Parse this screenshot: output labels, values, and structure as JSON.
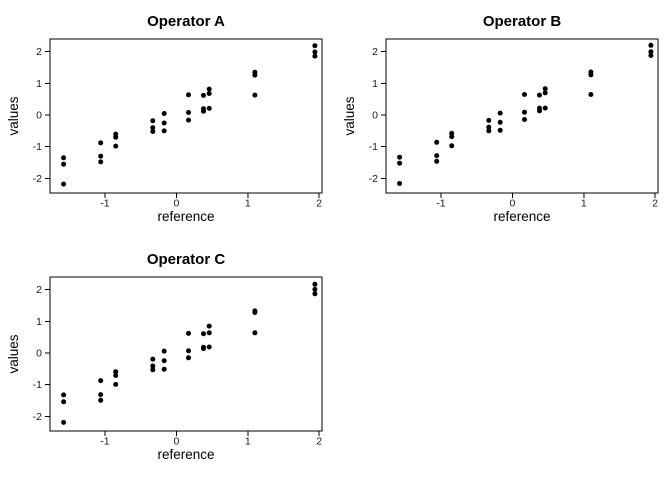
{
  "figure": {
    "background": "#ffffff",
    "point_color": "#000000",
    "axis_color": "#000000",
    "tick_label_color": "#1a1a1a",
    "title_color": "#000000"
  },
  "chart_data": {
    "type": "scatter",
    "layout": "2x2 grid, bottom-right cell empty, no gridlines, boxed panels",
    "legend": "none",
    "panels": [
      {
        "title": "Operator A",
        "xlabel": "reference",
        "ylabel": "values",
        "x_ticks": [
          -1,
          0,
          1,
          2
        ],
        "y_ticks": [
          -2,
          -1,
          0,
          1,
          2
        ],
        "xlim": [
          -1.77,
          2.04
        ],
        "ylim": [
          -2.46,
          2.4
        ],
        "points": [
          [
            -1.58,
            -1.35
          ],
          [
            -1.58,
            -1.55
          ],
          [
            -1.58,
            -2.18
          ],
          [
            -1.06,
            -0.88
          ],
          [
            -1.06,
            -1.3
          ],
          [
            -1.06,
            -1.48
          ],
          [
            -0.85,
            -0.6
          ],
          [
            -0.85,
            -0.7
          ],
          [
            -0.85,
            -0.98
          ],
          [
            -0.33,
            -0.18
          ],
          [
            -0.33,
            -0.4
          ],
          [
            -0.33,
            -0.52
          ],
          [
            -0.17,
            0.05
          ],
          [
            -0.17,
            -0.25
          ],
          [
            -0.17,
            -0.5
          ],
          [
            0.17,
            0.64
          ],
          [
            0.17,
            0.08
          ],
          [
            0.17,
            -0.16
          ],
          [
            0.38,
            0.62
          ],
          [
            0.38,
            0.2
          ],
          [
            0.38,
            0.12
          ],
          [
            0.46,
            0.82
          ],
          [
            0.46,
            0.68
          ],
          [
            0.46,
            0.21
          ],
          [
            1.1,
            1.35
          ],
          [
            1.1,
            1.26
          ],
          [
            1.1,
            0.63
          ],
          [
            1.94,
            2.19
          ],
          [
            1.94,
            1.99
          ],
          [
            1.94,
            1.86
          ]
        ]
      },
      {
        "title": "Operator B",
        "xlabel": "reference",
        "ylabel": "values",
        "x_ticks": [
          -1,
          0,
          1,
          2
        ],
        "y_ticks": [
          -2,
          -1,
          0,
          1,
          2
        ],
        "xlim": [
          -1.77,
          2.04
        ],
        "ylim": [
          -2.46,
          2.4
        ],
        "points": [
          [
            -1.58,
            -1.33
          ],
          [
            -1.58,
            -1.52
          ],
          [
            -1.58,
            -2.16
          ],
          [
            -1.06,
            -0.86
          ],
          [
            -1.06,
            -1.28
          ],
          [
            -1.06,
            -1.46
          ],
          [
            -0.85,
            -0.58
          ],
          [
            -0.85,
            -0.68
          ],
          [
            -0.85,
            -0.97
          ],
          [
            -0.33,
            -0.17
          ],
          [
            -0.33,
            -0.38
          ],
          [
            -0.33,
            -0.5
          ],
          [
            -0.17,
            0.06
          ],
          [
            -0.17,
            -0.23
          ],
          [
            -0.17,
            -0.48
          ],
          [
            0.17,
            0.65
          ],
          [
            0.17,
            0.09
          ],
          [
            0.17,
            -0.14
          ],
          [
            0.38,
            0.63
          ],
          [
            0.38,
            0.22
          ],
          [
            0.38,
            0.13
          ],
          [
            0.46,
            0.83
          ],
          [
            0.46,
            0.7
          ],
          [
            0.46,
            0.22
          ],
          [
            1.1,
            1.36
          ],
          [
            1.1,
            1.27
          ],
          [
            1.1,
            0.65
          ],
          [
            1.94,
            2.2
          ],
          [
            1.94,
            2.0
          ],
          [
            1.94,
            1.88
          ]
        ]
      },
      {
        "title": "Operator C",
        "xlabel": "reference",
        "ylabel": "values",
        "x_ticks": [
          -1,
          0,
          1,
          2
        ],
        "y_ticks": [
          -2,
          -1,
          0,
          1,
          2
        ],
        "xlim": [
          -1.77,
          2.04
        ],
        "ylim": [
          -2.46,
          2.4
        ],
        "points": [
          [
            -1.58,
            -1.32
          ],
          [
            -1.58,
            -1.54
          ],
          [
            -1.58,
            -2.19
          ],
          [
            -1.06,
            -0.87
          ],
          [
            -1.06,
            -1.31
          ],
          [
            -1.06,
            -1.49
          ],
          [
            -0.85,
            -0.59
          ],
          [
            -0.85,
            -0.71
          ],
          [
            -0.85,
            -0.99
          ],
          [
            -0.33,
            -0.19
          ],
          [
            -0.33,
            -0.41
          ],
          [
            -0.33,
            -0.53
          ],
          [
            -0.17,
            0.06
          ],
          [
            -0.17,
            -0.24
          ],
          [
            -0.17,
            -0.51
          ],
          [
            0.17,
            0.62
          ],
          [
            0.17,
            0.07
          ],
          [
            0.17,
            -0.15
          ],
          [
            0.38,
            0.61
          ],
          [
            0.38,
            0.18
          ],
          [
            0.38,
            0.14
          ],
          [
            0.46,
            0.85
          ],
          [
            0.46,
            0.64
          ],
          [
            0.46,
            0.19
          ],
          [
            1.1,
            1.33
          ],
          [
            1.1,
            1.28
          ],
          [
            1.1,
            0.64
          ],
          [
            1.94,
            2.17
          ],
          [
            1.94,
            2.01
          ],
          [
            1.94,
            1.87
          ]
        ]
      }
    ]
  }
}
